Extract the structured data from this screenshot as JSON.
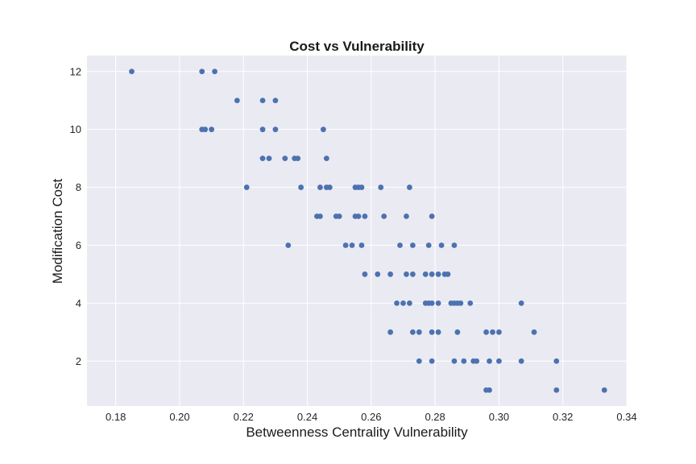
{
  "chart_data": {
    "type": "scatter",
    "title": "Cost vs Vulnerability",
    "xlabel": "Betweenness Centrality Vulnerability",
    "ylabel": "Modification Cost",
    "xlim": [
      0.171,
      0.34
    ],
    "ylim": [
      0.45,
      12.55
    ],
    "xticks": [
      0.18,
      0.2,
      0.22,
      0.24,
      0.26,
      0.28,
      0.3,
      0.32,
      0.34
    ],
    "xtick_labels": [
      "0.18",
      "0.20",
      "0.22",
      "0.24",
      "0.26",
      "0.28",
      "0.30",
      "0.32",
      "0.34"
    ],
    "yticks": [
      2,
      4,
      6,
      8,
      10,
      12
    ],
    "ytick_labels": [
      "2",
      "4",
      "6",
      "8",
      "10",
      "12"
    ],
    "grid": true,
    "legend": "none",
    "colors": {
      "background": "#eaeaf2",
      "grid": "#ffffff",
      "point": "#4c72b0"
    },
    "points": [
      [
        0.185,
        12
      ],
      [
        0.207,
        12
      ],
      [
        0.211,
        12
      ],
      [
        0.218,
        11
      ],
      [
        0.226,
        11
      ],
      [
        0.23,
        11
      ],
      [
        0.207,
        10
      ],
      [
        0.208,
        10
      ],
      [
        0.21,
        10
      ],
      [
        0.226,
        10
      ],
      [
        0.23,
        10
      ],
      [
        0.245,
        10
      ],
      [
        0.226,
        9
      ],
      [
        0.228,
        9
      ],
      [
        0.233,
        9
      ],
      [
        0.236,
        9
      ],
      [
        0.237,
        9
      ],
      [
        0.246,
        9
      ],
      [
        0.221,
        8
      ],
      [
        0.238,
        8
      ],
      [
        0.244,
        8
      ],
      [
        0.246,
        8
      ],
      [
        0.247,
        8
      ],
      [
        0.255,
        8
      ],
      [
        0.256,
        8
      ],
      [
        0.257,
        8
      ],
      [
        0.263,
        8
      ],
      [
        0.272,
        8
      ],
      [
        0.243,
        7
      ],
      [
        0.244,
        7
      ],
      [
        0.249,
        7
      ],
      [
        0.25,
        7
      ],
      [
        0.255,
        7
      ],
      [
        0.256,
        7
      ],
      [
        0.258,
        7
      ],
      [
        0.264,
        7
      ],
      [
        0.271,
        7
      ],
      [
        0.279,
        7
      ],
      [
        0.234,
        6
      ],
      [
        0.252,
        6
      ],
      [
        0.254,
        6
      ],
      [
        0.257,
        6
      ],
      [
        0.269,
        6
      ],
      [
        0.273,
        6
      ],
      [
        0.278,
        6
      ],
      [
        0.282,
        6
      ],
      [
        0.286,
        6
      ],
      [
        0.258,
        5
      ],
      [
        0.262,
        5
      ],
      [
        0.266,
        5
      ],
      [
        0.271,
        5
      ],
      [
        0.273,
        5
      ],
      [
        0.277,
        5
      ],
      [
        0.279,
        5
      ],
      [
        0.281,
        5
      ],
      [
        0.283,
        5
      ],
      [
        0.284,
        5
      ],
      [
        0.268,
        4
      ],
      [
        0.27,
        4
      ],
      [
        0.272,
        4
      ],
      [
        0.277,
        4
      ],
      [
        0.278,
        4
      ],
      [
        0.279,
        4
      ],
      [
        0.281,
        4
      ],
      [
        0.285,
        4
      ],
      [
        0.286,
        4
      ],
      [
        0.287,
        4
      ],
      [
        0.288,
        4
      ],
      [
        0.291,
        4
      ],
      [
        0.307,
        4
      ],
      [
        0.266,
        3
      ],
      [
        0.273,
        3
      ],
      [
        0.275,
        3
      ],
      [
        0.279,
        3
      ],
      [
        0.281,
        3
      ],
      [
        0.287,
        3
      ],
      [
        0.296,
        3
      ],
      [
        0.298,
        3
      ],
      [
        0.3,
        3
      ],
      [
        0.311,
        3
      ],
      [
        0.275,
        2
      ],
      [
        0.279,
        2
      ],
      [
        0.286,
        2
      ],
      [
        0.289,
        2
      ],
      [
        0.292,
        2
      ],
      [
        0.293,
        2
      ],
      [
        0.297,
        2
      ],
      [
        0.3,
        2
      ],
      [
        0.307,
        2
      ],
      [
        0.318,
        2
      ],
      [
        0.296,
        1
      ],
      [
        0.297,
        1
      ],
      [
        0.318,
        1
      ],
      [
        0.333,
        1
      ]
    ]
  }
}
